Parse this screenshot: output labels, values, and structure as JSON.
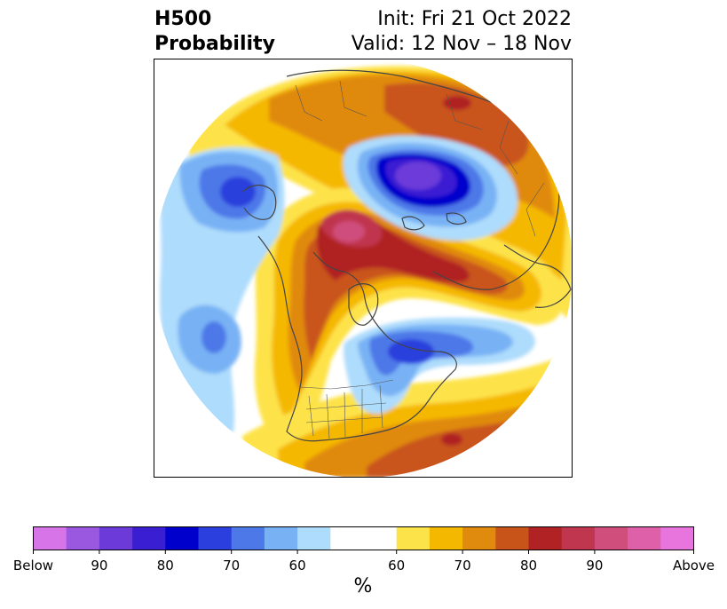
{
  "title": {
    "variable": "H500",
    "kind": "Probability",
    "init": "Init: Fri 21 Oct 2022",
    "valid": "Valid: 12 Nov – 18 Nov"
  },
  "colorbar": {
    "unit_label": "%",
    "below_colors": [
      "#d774e8",
      "#9a57e0",
      "#6c3ad9",
      "#3a1fd2",
      "#0000cc",
      "#2a3fdd",
      "#4d78e8",
      "#78b2f5",
      "#aedcfc"
    ],
    "neutral_color": "#ffffff",
    "above_colors": [
      "#fde34a",
      "#f5b800",
      "#e08a0e",
      "#c9541a",
      "#b02224",
      "#c0364e",
      "#cf4e7c",
      "#de60a8",
      "#e874dd"
    ],
    "tick_labels": [
      "Below",
      "90",
      "80",
      "70",
      "60",
      "60",
      "70",
      "80",
      "90",
      "Above"
    ]
  }
}
